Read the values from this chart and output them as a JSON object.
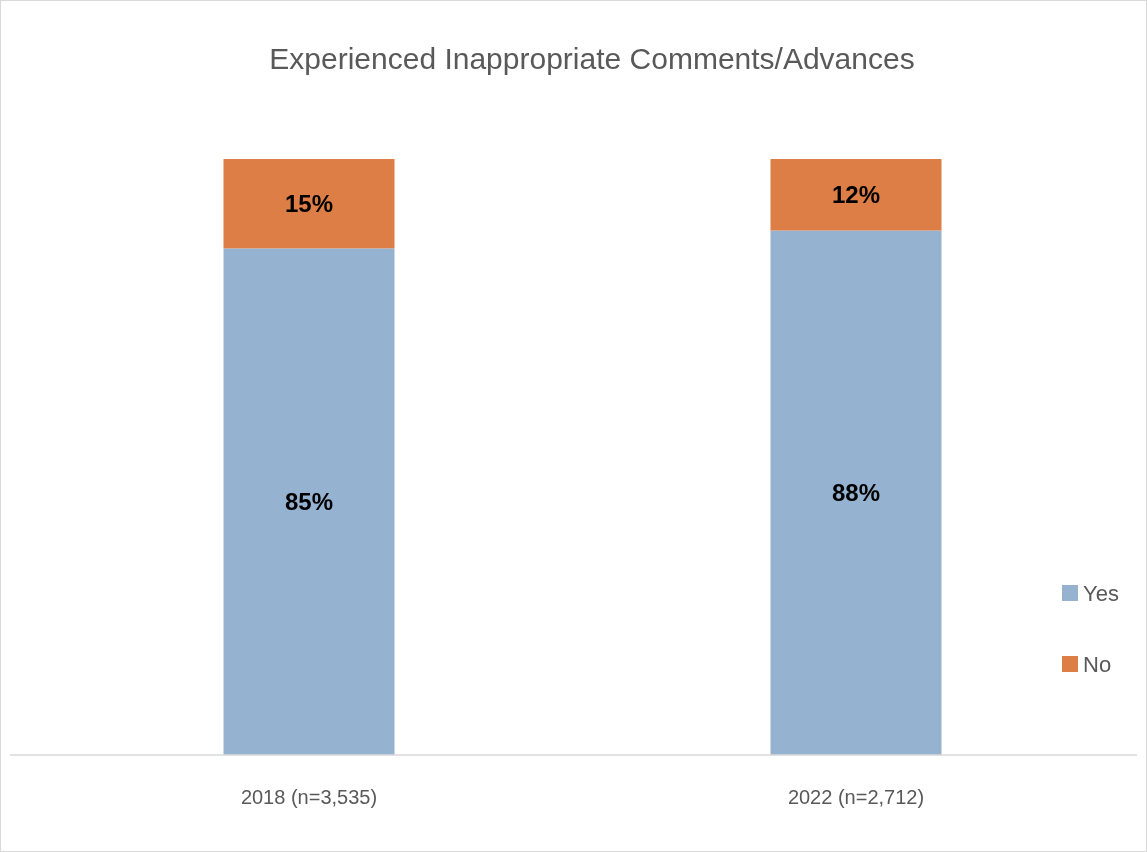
{
  "chart_data": {
    "type": "bar",
    "stacked": true,
    "title": "Experienced Inappropriate Comments/Advances",
    "categories": [
      "2018 (n=3,535)",
      "2022 (n=2,712)"
    ],
    "series": [
      {
        "name": "Yes",
        "color": "#95b3d1",
        "values": [
          85,
          88
        ],
        "value_labels": [
          "85%",
          "88%"
        ]
      },
      {
        "name": "No",
        "color": "#dd7e47",
        "values": [
          15,
          12
        ],
        "value_labels": [
          "15%",
          "12%"
        ]
      }
    ],
    "legend": "right",
    "grid": false
  }
}
